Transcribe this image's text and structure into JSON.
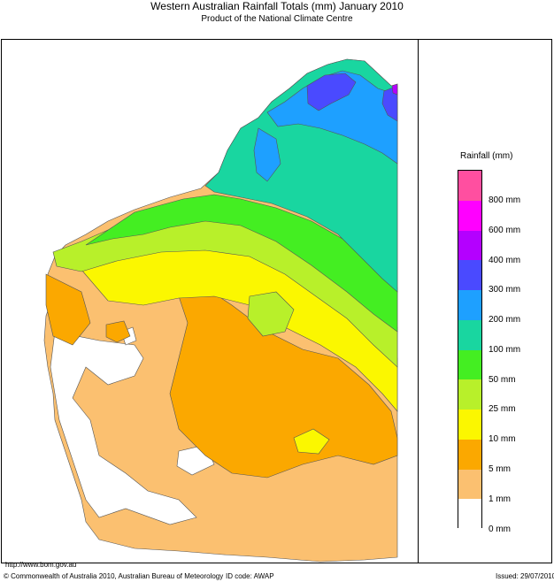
{
  "title": "Western Australian Rainfall Totals (mm) January 2010",
  "subtitle": "Product of the National Climate Centre",
  "legend": {
    "title": "Rainfall (mm)",
    "classes": [
      {
        "label": "800 mm",
        "color": "#ff4fa0"
      },
      {
        "label": "600 mm",
        "color": "#ff00ff"
      },
      {
        "label": "400 mm",
        "color": "#b400ff"
      },
      {
        "label": "300 mm",
        "color": "#4a4aff"
      },
      {
        "label": "200 mm",
        "color": "#1ea0ff"
      },
      {
        "label": "100 mm",
        "color": "#19d6a0"
      },
      {
        "label": "50 mm",
        "color": "#44ee22"
      },
      {
        "label": "25 mm",
        "color": "#b8f02a"
      },
      {
        "label": "10 mm",
        "color": "#fbf700"
      },
      {
        "label": "5 mm",
        "color": "#fba800"
      },
      {
        "label": "1 mm",
        "color": "#fbc070"
      },
      {
        "label": "0 mm",
        "color": "#ffffff"
      }
    ]
  },
  "footer": {
    "url": "http://www.bom.gov.au",
    "copyright": "© Commonwealth of Australia 2010, Australian Bureau of Meteorology",
    "id_code": "ID code: AWAP",
    "issued": "Issued: 29/07/2010"
  }
}
